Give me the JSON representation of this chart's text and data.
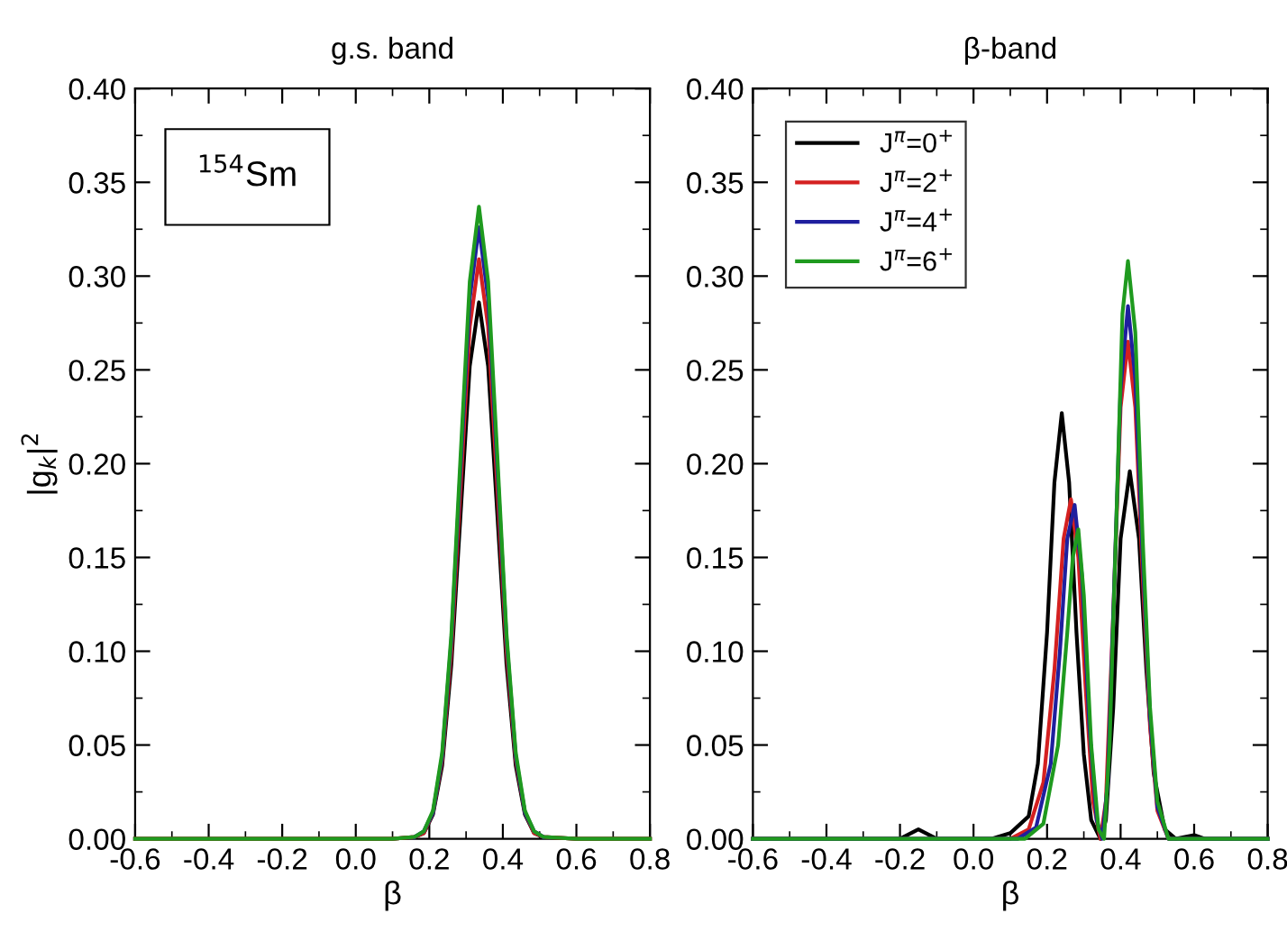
{
  "chart_data": [
    {
      "type": "line",
      "title": "g.s. band",
      "xlabel": "β",
      "ylabel": "|g$_{k}$|$^{2}$",
      "annotations": [
        "$^{154}$Sm"
      ],
      "x": [
        -0.6,
        0.1,
        0.16,
        0.185,
        0.21,
        0.235,
        0.26,
        0.285,
        0.31,
        0.335,
        0.36,
        0.385,
        0.41,
        0.435,
        0.46,
        0.485,
        0.51,
        0.6,
        0.8
      ],
      "series": [
        {
          "color": "#000000",
          "values": [
            0,
            0,
            0.001,
            0.003,
            0.013,
            0.039,
            0.093,
            0.173,
            0.252,
            0.286,
            0.252,
            0.173,
            0.093,
            0.039,
            0.013,
            0.003,
            0.001,
            0,
            0
          ]
        },
        {
          "color": "#d42020",
          "values": [
            0,
            0,
            0.001,
            0.003,
            0.014,
            0.042,
            0.1,
            0.187,
            0.273,
            0.309,
            0.273,
            0.187,
            0.1,
            0.042,
            0.014,
            0.003,
            0.001,
            0,
            0
          ]
        },
        {
          "color": "#1f1f9e",
          "values": [
            null,
            null,
            0.001,
            0.004,
            0.014,
            0.044,
            0.106,
            0.198,
            0.288,
            0.326,
            0.288,
            0.198,
            0.106,
            0.044,
            0.014,
            0.004,
            0.001,
            null,
            null
          ]
        },
        {
          "color": "#1f9a1f",
          "values": [
            0,
            0,
            0.001,
            0.004,
            0.015,
            0.046,
            0.109,
            0.204,
            0.297,
            0.337,
            0.297,
            0.204,
            0.109,
            0.046,
            0.015,
            0.004,
            0.001,
            0,
            0
          ]
        }
      ],
      "xlim": [
        -0.6,
        0.8
      ],
      "ylim": [
        0,
        0.4
      ],
      "xticks": [
        -0.6,
        -0.4,
        -0.2,
        {
          "value": 0,
          "label": "0.0"
        },
        0.2,
        0.4,
        0.6,
        0.8
      ],
      "yticks": [
        {
          "value": 0,
          "label": "0.00"
        },
        0.05,
        {
          "value": 0.1,
          "label": "0.10"
        },
        0.15,
        {
          "value": 0.2,
          "label": "0.20"
        },
        0.25,
        {
          "value": 0.3,
          "label": "0.30"
        },
        0.35,
        {
          "value": 0.4,
          "label": "0.40"
        }
      ],
      "grid": false,
      "legend": false,
      "marker": "none",
      "line_style": "solid"
    },
    {
      "type": "line",
      "title": "β-band",
      "xlabel": "β",
      "series": [
        {
          "name": "J$^{π}$=0$^{+}$",
          "color": "#000000",
          "x": [
            -0.6,
            -0.2,
            -0.15,
            -0.1,
            0.05,
            0.1,
            0.15,
            0.175,
            0.2,
            0.22,
            0.24,
            0.26,
            0.28,
            0.3,
            0.32,
            0.345,
            0.36,
            0.38,
            0.4,
            0.425,
            0.45,
            0.47,
            0.49,
            0.52,
            0.55,
            0.6,
            0.63,
            0.8
          ],
          "values": [
            0,
            0,
            0.005,
            0,
            0,
            0.003,
            0.012,
            0.04,
            0.11,
            0.19,
            0.227,
            0.19,
            0.11,
            0.045,
            0.01,
            0,
            0.01,
            0.07,
            0.16,
            0.196,
            0.16,
            0.09,
            0.035,
            0.005,
            0,
            0.002,
            0,
            0
          ]
        },
        {
          "name": "J$^{π}$=2$^{+}$",
          "color": "#d42020",
          "x": [
            -0.6,
            0.1,
            0.15,
            0.19,
            0.22,
            0.245,
            0.265,
            0.285,
            0.305,
            0.325,
            0.345,
            0.36,
            0.38,
            0.4,
            0.42,
            0.44,
            0.46,
            0.48,
            0.5,
            0.53,
            0.8
          ],
          "values": [
            0,
            0,
            0.005,
            0.03,
            0.09,
            0.16,
            0.181,
            0.15,
            0.08,
            0.02,
            0,
            0.02,
            0.12,
            0.23,
            0.265,
            0.23,
            0.14,
            0.06,
            0.015,
            0,
            0
          ]
        },
        {
          "name": "J$^{π}$=4$^{+}$",
          "color": "#1f1f9e",
          "x": [
            -0.6,
            0.12,
            0.17,
            0.21,
            0.235,
            0.255,
            0.275,
            0.295,
            0.315,
            0.335,
            0.35,
            0.365,
            0.385,
            0.4,
            0.42,
            0.44,
            0.46,
            0.48,
            0.5,
            0.53,
            0.8
          ],
          "values": [
            0,
            0,
            0.006,
            0.04,
            0.1,
            0.16,
            0.178,
            0.14,
            0.06,
            0.01,
            0,
            0.03,
            0.15,
            0.24,
            0.284,
            0.245,
            0.15,
            0.065,
            0.017,
            0,
            0
          ]
        },
        {
          "name": "J$^{π}$=6$^{+}$",
          "color": "#1f9a1f",
          "x": [
            -0.6,
            0.14,
            0.19,
            0.23,
            0.255,
            0.27,
            0.285,
            0.3,
            0.32,
            0.34,
            0.355,
            0.37,
            0.39,
            0.405,
            0.42,
            0.44,
            0.46,
            0.48,
            0.5,
            0.53,
            0.8
          ],
          "values": [
            0,
            0,
            0.008,
            0.05,
            0.11,
            0.15,
            0.165,
            0.13,
            0.05,
            0.005,
            0,
            0.05,
            0.18,
            0.28,
            0.308,
            0.27,
            0.16,
            0.07,
            0.02,
            0,
            0
          ]
        }
      ],
      "xlim": [
        -0.6,
        0.8
      ],
      "ylim": [
        0,
        0.4
      ],
      "xticks": [
        -0.6,
        -0.4,
        -0.2,
        {
          "value": 0,
          "label": "0.0"
        },
        0.2,
        0.4,
        0.6,
        0.8
      ],
      "yticks": [
        {
          "value": 0,
          "label": "0.00"
        },
        0.05,
        {
          "value": 0.1,
          "label": "0.10"
        },
        0.15,
        {
          "value": 0.2,
          "label": "0.20"
        },
        0.25,
        {
          "value": 0.3,
          "label": "0.30"
        },
        0.35,
        {
          "value": 0.4,
          "label": "0.40"
        }
      ],
      "grid": false,
      "legend": "top left",
      "marker": "none",
      "line_style": "solid"
    }
  ]
}
